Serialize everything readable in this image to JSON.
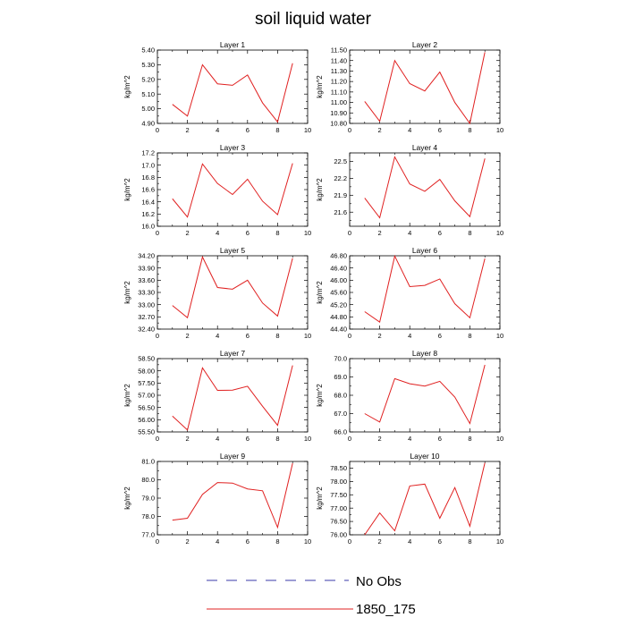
{
  "figure": {
    "title": "soil liquid water",
    "legend": [
      {
        "label": "No Obs",
        "color": "#3a3aa8",
        "dash": true
      },
      {
        "label": "1850_175",
        "color": "#e02020",
        "dash": false
      }
    ]
  },
  "chart_data": [
    {
      "type": "line",
      "title": "Layer 1",
      "ylabel": "kg/m^2",
      "xlim": [
        0,
        10
      ],
      "ylim": [
        4.9,
        5.4
      ],
      "xticks": [
        0,
        2,
        4,
        6,
        8,
        10
      ],
      "yticks": [
        "4.90",
        "5.00",
        "5.10",
        "5.20",
        "5.30",
        "5.40"
      ],
      "x": [
        1,
        2,
        3,
        4,
        5,
        6,
        7,
        8,
        9
      ],
      "series": [
        {
          "name": "1850_175",
          "color": "#e02020",
          "values": [
            5.03,
            4.95,
            5.3,
            5.17,
            5.16,
            5.23,
            5.04,
            4.91,
            5.31
          ]
        }
      ]
    },
    {
      "type": "line",
      "title": "Layer 2",
      "ylabel": "kg/m^2",
      "xlim": [
        0,
        10
      ],
      "ylim": [
        10.8,
        11.5
      ],
      "xticks": [
        0,
        2,
        4,
        6,
        8,
        10
      ],
      "yticks": [
        "10.80",
        "10.90",
        "11.00",
        "11.10",
        "11.20",
        "11.30",
        "11.40",
        "11.50"
      ],
      "x": [
        1,
        2,
        3,
        4,
        5,
        6,
        7,
        8,
        9
      ],
      "series": [
        {
          "name": "1850_175",
          "color": "#e02020",
          "values": [
            11.01,
            10.82,
            11.4,
            11.18,
            11.11,
            11.29,
            11.0,
            10.8,
            11.48
          ]
        }
      ]
    },
    {
      "type": "line",
      "title": "Layer 3",
      "ylabel": "kg/m^2",
      "xlim": [
        0,
        10
      ],
      "ylim": [
        16.0,
        17.2
      ],
      "xticks": [
        0,
        2,
        4,
        6,
        8,
        10
      ],
      "yticks": [
        "16.0",
        "16.2",
        "16.4",
        "16.6",
        "16.8",
        "17.0",
        "17.2"
      ],
      "x": [
        1,
        2,
        3,
        4,
        5,
        6,
        7,
        8,
        9
      ],
      "series": [
        {
          "name": "1850_175",
          "color": "#e02020",
          "values": [
            16.45,
            16.15,
            17.02,
            16.7,
            16.52,
            16.77,
            16.41,
            16.19,
            17.03
          ]
        }
      ]
    },
    {
      "type": "line",
      "title": "Layer 4",
      "ylabel": "kg/m^2",
      "xlim": [
        0,
        10
      ],
      "ylim": [
        21.35,
        22.65
      ],
      "xticks": [
        0,
        2,
        4,
        6,
        8,
        10
      ],
      "yticks": [
        "21.6",
        "21.9",
        "22.2",
        "22.5"
      ],
      "x": [
        1,
        2,
        3,
        4,
        5,
        6,
        7,
        8,
        9
      ],
      "series": [
        {
          "name": "1850_175",
          "color": "#e02020",
          "values": [
            21.85,
            21.5,
            22.58,
            22.1,
            21.97,
            22.18,
            21.8,
            21.52,
            22.55
          ]
        }
      ]
    },
    {
      "type": "line",
      "title": "Layer 5",
      "ylabel": "kg/m^2",
      "xlim": [
        0,
        10
      ],
      "ylim": [
        32.4,
        34.2
      ],
      "xticks": [
        0,
        2,
        4,
        6,
        8,
        10
      ],
      "yticks": [
        "32.40",
        "32.70",
        "33.00",
        "33.30",
        "33.60",
        "33.90",
        "34.20"
      ],
      "x": [
        1,
        2,
        3,
        4,
        5,
        6,
        7,
        8,
        9
      ],
      "series": [
        {
          "name": "1850_175",
          "color": "#e02020",
          "values": [
            32.98,
            32.68,
            34.17,
            33.42,
            33.38,
            33.6,
            33.04,
            32.72,
            34.14
          ]
        }
      ]
    },
    {
      "type": "line",
      "title": "Layer 6",
      "ylabel": "kg/m^2",
      "xlim": [
        0,
        10
      ],
      "ylim": [
        44.4,
        46.8
      ],
      "xticks": [
        0,
        2,
        4,
        6,
        8,
        10
      ],
      "yticks": [
        "44.40",
        "44.80",
        "45.20",
        "45.60",
        "46.00",
        "46.40",
        "46.80"
      ],
      "x": [
        1,
        2,
        3,
        4,
        5,
        6,
        7,
        8,
        9
      ],
      "series": [
        {
          "name": "1850_175",
          "color": "#e02020",
          "values": [
            44.97,
            44.63,
            46.79,
            45.79,
            45.83,
            46.04,
            45.23,
            44.77,
            46.71
          ]
        }
      ]
    },
    {
      "type": "line",
      "title": "Layer 7",
      "ylabel": "kg/m^2",
      "xlim": [
        0,
        10
      ],
      "ylim": [
        55.5,
        58.5
      ],
      "xticks": [
        0,
        2,
        4,
        6,
        8,
        10
      ],
      "yticks": [
        "55.50",
        "56.00",
        "56.50",
        "57.00",
        "57.50",
        "58.00",
        "58.50"
      ],
      "x": [
        1,
        2,
        3,
        4,
        5,
        6,
        7,
        8,
        9
      ],
      "series": [
        {
          "name": "1850_175",
          "color": "#e02020",
          "values": [
            56.15,
            55.58,
            58.12,
            57.2,
            57.21,
            57.37,
            56.55,
            55.77,
            58.22
          ]
        }
      ]
    },
    {
      "type": "line",
      "title": "Layer 8",
      "ylabel": "kg/m^2",
      "xlim": [
        0,
        10
      ],
      "ylim": [
        66.0,
        70.0
      ],
      "xticks": [
        0,
        2,
        4,
        6,
        8,
        10
      ],
      "yticks": [
        "66.0",
        "67.0",
        "68.0",
        "69.0",
        "70.0"
      ],
      "x": [
        1,
        2,
        3,
        4,
        5,
        6,
        7,
        8,
        9
      ],
      "series": [
        {
          "name": "1850_175",
          "color": "#e02020",
          "values": [
            67.0,
            66.54,
            68.91,
            68.63,
            68.5,
            68.76,
            67.9,
            66.46,
            69.66
          ]
        }
      ]
    },
    {
      "type": "line",
      "title": "Layer 9",
      "ylabel": "kg/m^2",
      "xlim": [
        0,
        10
      ],
      "ylim": [
        77.0,
        81.0
      ],
      "xticks": [
        0,
        2,
        4,
        6,
        8,
        10
      ],
      "yticks": [
        "77.0",
        "78.0",
        "79.0",
        "80.0",
        "81.0"
      ],
      "x": [
        1,
        2,
        3,
        4,
        5,
        6,
        7,
        8,
        9
      ],
      "series": [
        {
          "name": "1850_175",
          "color": "#e02020",
          "values": [
            77.8,
            77.9,
            79.2,
            79.85,
            79.82,
            79.5,
            79.4,
            77.4,
            80.9
          ]
        }
      ]
    },
    {
      "type": "line",
      "title": "Layer 10",
      "ylabel": "kg/m^2",
      "xlim": [
        0,
        10
      ],
      "ylim": [
        76.0,
        78.75
      ],
      "xticks": [
        0,
        2,
        4,
        6,
        8,
        10
      ],
      "yticks": [
        "76.00",
        "76.50",
        "77.00",
        "77.50",
        "78.00",
        "78.50"
      ],
      "x": [
        1,
        2,
        3,
        4,
        5,
        6,
        7,
        8,
        9
      ],
      "series": [
        {
          "name": "1850_175",
          "color": "#e02020",
          "values": [
            76.0,
            76.82,
            76.15,
            77.83,
            77.9,
            76.62,
            77.77,
            76.32,
            78.7
          ]
        }
      ]
    }
  ]
}
